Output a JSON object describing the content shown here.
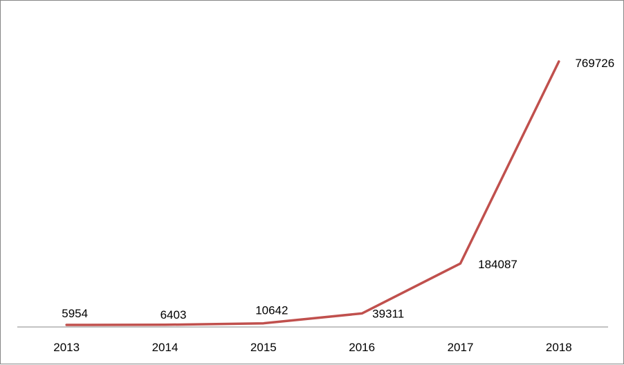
{
  "chart_data": {
    "type": "line",
    "title": "",
    "xlabel": "",
    "ylabel": "",
    "categories": [
      "2013",
      "2014",
      "2015",
      "2016",
      "2017",
      "2018"
    ],
    "series": [
      {
        "values": [
          5954,
          6403,
          10642,
          39311,
          184087,
          769726
        ],
        "color": "#C0504D"
      }
    ],
    "data_labels": [
      "5954",
      "6403",
      "10642",
      "39311",
      "184087",
      "769726"
    ],
    "ylim": [
      0,
      900000
    ],
    "grid": false,
    "legend": "none",
    "axis_color": "#868686"
  }
}
